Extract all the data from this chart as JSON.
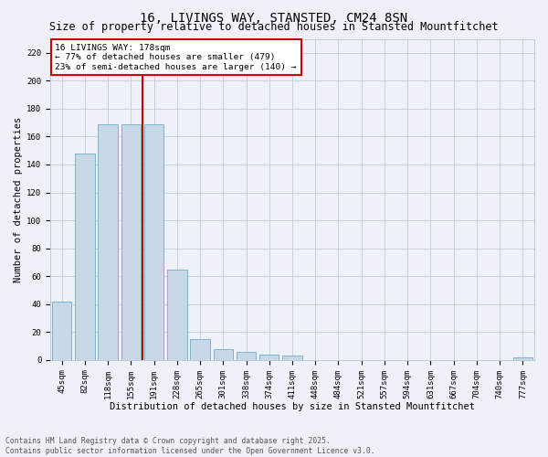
{
  "title": "16, LIVINGS WAY, STANSTED, CM24 8SN",
  "subtitle": "Size of property relative to detached houses in Stansted Mountfitchet",
  "xlabel": "Distribution of detached houses by size in Stansted Mountfitchet",
  "ylabel": "Number of detached properties",
  "categories": [
    "45sqm",
    "82sqm",
    "118sqm",
    "155sqm",
    "191sqm",
    "228sqm",
    "265sqm",
    "301sqm",
    "338sqm",
    "374sqm",
    "411sqm",
    "448sqm",
    "484sqm",
    "521sqm",
    "557sqm",
    "594sqm",
    "631sqm",
    "667sqm",
    "704sqm",
    "740sqm",
    "777sqm"
  ],
  "values": [
    42,
    148,
    169,
    169,
    169,
    65,
    15,
    8,
    6,
    4,
    3,
    0,
    0,
    0,
    0,
    0,
    0,
    0,
    0,
    0,
    2
  ],
  "bar_color": "#c8d8e8",
  "bar_edge_color": "#7ab4cc",
  "vline_color": "#cc0000",
  "annotation_text": "16 LIVINGS WAY: 178sqm\n← 77% of detached houses are smaller (479)\n23% of semi-detached houses are larger (140) →",
  "annotation_box_color": "#ffffff",
  "annotation_box_edge": "#cc0000",
  "ylim": [
    0,
    230
  ],
  "yticks": [
    0,
    20,
    40,
    60,
    80,
    100,
    120,
    140,
    160,
    180,
    200,
    220
  ],
  "grid_color": "#c0ccd8",
  "bg_color": "#eef2f8",
  "footer": "Contains HM Land Registry data © Crown copyright and database right 2025.\nContains public sector information licensed under the Open Government Licence v3.0.",
  "title_fontsize": 10,
  "subtitle_fontsize": 8.5,
  "axis_label_fontsize": 7.5,
  "tick_fontsize": 6.5,
  "annotation_fontsize": 6.8,
  "footer_fontsize": 5.8
}
